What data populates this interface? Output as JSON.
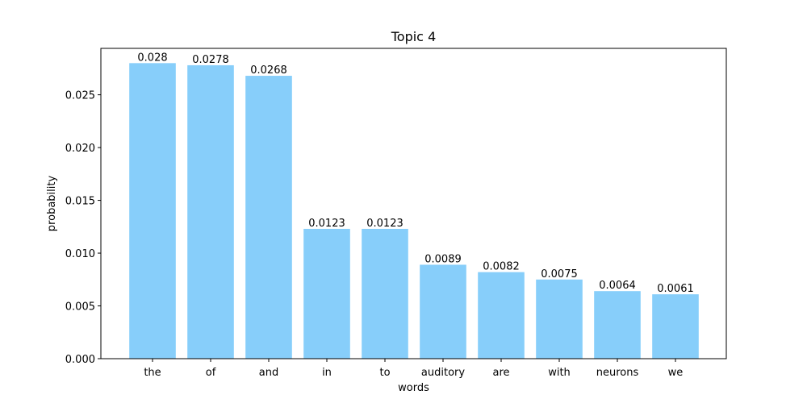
{
  "chart_data": {
    "type": "bar",
    "title": "Topic 4",
    "xlabel": "words",
    "ylabel": "probability",
    "categories": [
      "the",
      "of",
      "and",
      "in",
      "to",
      "auditory",
      "are",
      "with",
      "neurons",
      "we"
    ],
    "values": [
      0.028,
      0.0278,
      0.0268,
      0.0123,
      0.0123,
      0.0089,
      0.0082,
      0.0075,
      0.0064,
      0.0061
    ],
    "value_labels": [
      "0.028",
      "0.0278",
      "0.0268",
      "0.0123",
      "0.0123",
      "0.0089",
      "0.0082",
      "0.0075",
      "0.0064",
      "0.0061"
    ],
    "yticks": [
      0.0,
      0.005,
      0.01,
      0.015,
      0.02,
      0.025
    ],
    "ytick_labels": [
      "0.000",
      "0.005",
      "0.010",
      "0.015",
      "0.020",
      "0.025"
    ],
    "ylim": [
      0,
      0.0294
    ],
    "grid": false,
    "bar_color": "#87CEFA"
  }
}
